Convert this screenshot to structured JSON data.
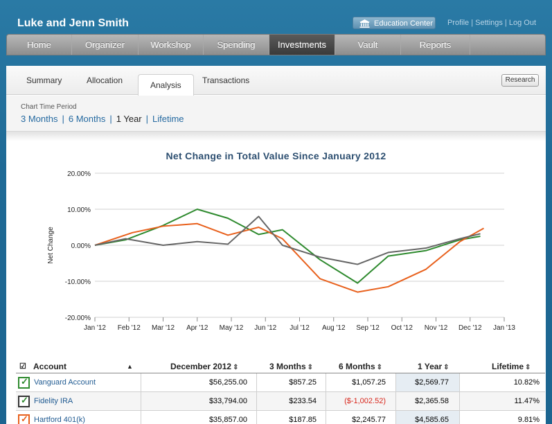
{
  "header": {
    "user_name": "Luke and Jenn Smith",
    "education_center": "Education Center",
    "links": [
      "Profile",
      "Settings",
      "Log Out"
    ]
  },
  "nav": {
    "items": [
      "Home",
      "Organizer",
      "Workshop",
      "Spending",
      "Investments",
      "Vault",
      "Reports"
    ],
    "active": "Investments"
  },
  "tabs": {
    "items": [
      "Summary",
      "Allocation",
      "Analysis",
      "Transactions"
    ],
    "active": "Analysis",
    "research": "Research"
  },
  "period": {
    "label": "Chart Time Period",
    "options": [
      "3 Months",
      "6 Months",
      "1 Year",
      "Lifetime"
    ],
    "current": "1 Year"
  },
  "chart_data": {
    "type": "line",
    "title": "Net Change in Total Value Since January 2012",
    "ylabel": "Net Change",
    "xlabel": "",
    "categories": [
      "Jan '12",
      "Feb '12",
      "Mar '12",
      "Apr '12",
      "May '12",
      "Jun '12",
      "Jul '12",
      "Aug '12",
      "Sep '12",
      "Oct '12",
      "Nov '12",
      "Dec '12",
      "Jan '13"
    ],
    "ylim": [
      -20,
      20
    ],
    "yticks": [
      "20.00%",
      "10.00%",
      "0.00%",
      "-10.00%",
      "-20.00%"
    ],
    "grid": true,
    "series": [
      {
        "color": "#2e8a2e",
        "x": [
          0,
          0.9,
          2.0,
          3.0,
          3.9,
          4.8,
          5.5,
          6.6,
          7.7,
          8.6,
          9.7,
          10.7,
          11.3
        ],
        "values": [
          0,
          1.5,
          5.5,
          10,
          7.5,
          3,
          4.3,
          -4,
          -10.5,
          -3,
          -1.5,
          1.5,
          2.5
        ]
      },
      {
        "color": "#e8601c",
        "x": [
          0,
          1.1,
          2.0,
          3.0,
          3.9,
          4.8,
          5.5,
          6.6,
          7.7,
          8.6,
          9.7,
          10.7,
          11.4
        ],
        "values": [
          0,
          3.5,
          5.3,
          6,
          2.8,
          5,
          1.8,
          -9.3,
          -13,
          -11.5,
          -6.7,
          1,
          4.7
        ]
      },
      {
        "color": "#666666",
        "x": [
          0,
          0.9,
          2.0,
          3.0,
          3.9,
          4.8,
          5.5,
          6.6,
          7.7,
          8.6,
          9.7,
          10.7,
          11.3
        ],
        "values": [
          0,
          1.8,
          0,
          1,
          0.3,
          8,
          0,
          -3.3,
          -5.3,
          -2,
          -0.8,
          1.8,
          3.2
        ]
      }
    ]
  },
  "table": {
    "headers": {
      "account": "Account",
      "december": "December 2012",
      "three_months": "3 Months",
      "six_months": "6 Months",
      "one_year": "1 Year",
      "lifetime": "Lifetime"
    },
    "rows": [
      {
        "name": "Vanguard Account",
        "december": "$56,255.00",
        "three_months": "$857.25",
        "six_months": "$1,057.25",
        "one_year": "$2,569.77",
        "lifetime": "10.82%",
        "color": "#2e8a2e",
        "negative_six": false
      },
      {
        "name": "Fidelity IRA",
        "december": "$33,794.00",
        "three_months": "$233.54",
        "six_months": "($-1,002.52)",
        "one_year": "$2,365.58",
        "lifetime": "11.47%",
        "color": "#333333",
        "negative_six": true
      },
      {
        "name": "Hartford 401(k)",
        "december": "$35,857.00",
        "three_months": "$187.85",
        "six_months": "$2,245.77",
        "one_year": "$4,585.65",
        "lifetime": "9.81%",
        "color": "#e8601c",
        "negative_six": false
      }
    ]
  }
}
